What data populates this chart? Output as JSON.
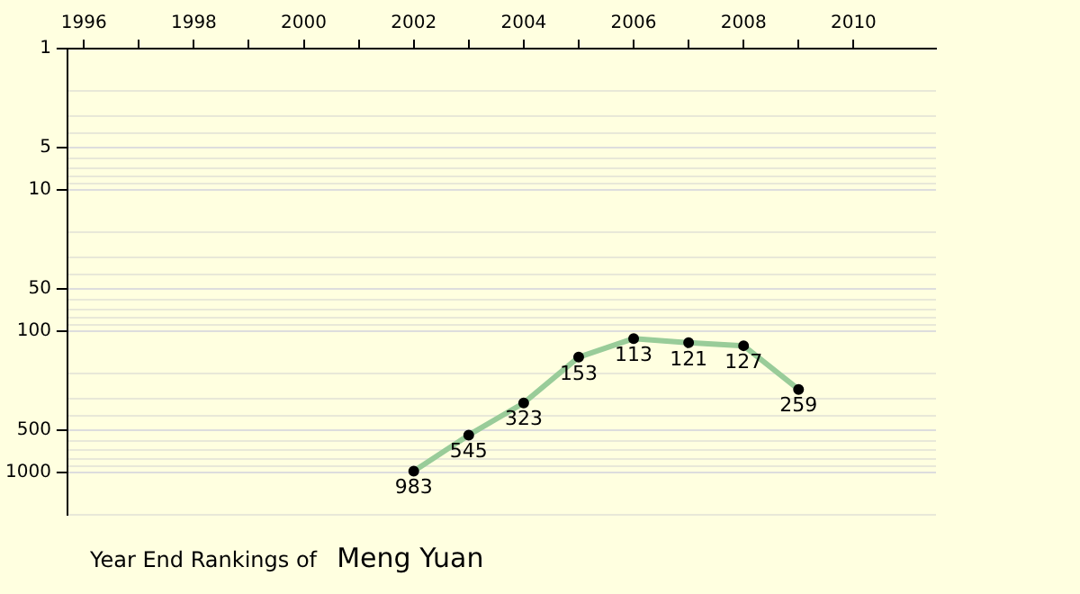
{
  "chart_data": {
    "type": "line",
    "title": "Year End Rankings of",
    "subtitle": "Meng Yuan",
    "x": [
      2002,
      2003,
      2004,
      2005,
      2006,
      2007,
      2008,
      2009
    ],
    "series": [
      {
        "color": "#99cc99",
        "values": [
          983,
          545,
          323,
          153,
          113,
          121,
          127,
          259
        ]
      }
    ],
    "data_labels": true,
    "marker": "circle",
    "log": "y",
    "grid": "y",
    "xlim": [
      1995.7,
      2011.5
    ],
    "xticks": [
      1996,
      {
        "value": 1997,
        "label": null
      },
      1998,
      {
        "value": 1999,
        "label": null
      },
      2000,
      {
        "value": 2001,
        "label": null
      },
      2002,
      {
        "value": 2003,
        "label": null
      },
      2004,
      {
        "value": 2005,
        "label": null
      },
      2006,
      {
        "value": 2007,
        "label": null
      },
      2008,
      {
        "value": 2009,
        "label": null
      },
      2010
    ],
    "ylim": [
      2000,
      1
    ],
    "yticks": [
      1,
      {
        "value": 2,
        "label": null
      },
      {
        "value": 3,
        "label": null
      },
      {
        "value": 4,
        "label": null
      },
      5,
      {
        "value": 6,
        "label": null
      },
      {
        "value": 7,
        "label": null
      },
      {
        "value": 8,
        "label": null
      },
      {
        "value": 9,
        "label": null
      },
      10,
      {
        "value": 20,
        "label": null
      },
      {
        "value": 30,
        "label": null
      },
      {
        "value": 40,
        "label": null
      },
      50,
      {
        "value": 60,
        "label": null
      },
      {
        "value": 70,
        "label": null
      },
      {
        "value": 80,
        "label": null
      },
      {
        "value": 90,
        "label": null
      },
      100,
      {
        "value": 200,
        "label": null
      },
      {
        "value": 300,
        "label": null
      },
      {
        "value": 400,
        "label": null
      },
      500,
      {
        "value": 600,
        "label": null
      },
      {
        "value": 700,
        "label": null
      },
      {
        "value": 800,
        "label": null
      },
      {
        "value": 900,
        "label": null
      },
      1000,
      {
        "value": 2000,
        "label": null
      }
    ]
  }
}
